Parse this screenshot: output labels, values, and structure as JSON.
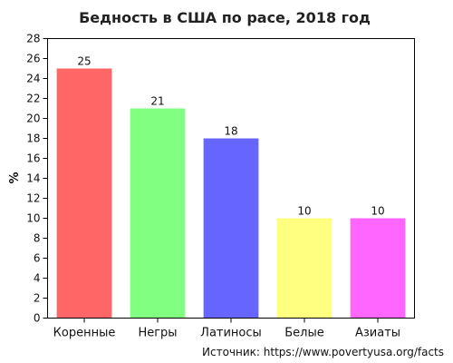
{
  "chart_data": {
    "type": "bar",
    "title": "Бедность в США по расе, 2018 год",
    "xlabel": "",
    "ylabel": "%",
    "ylim": [
      0,
      28
    ],
    "yticks": [
      0,
      2,
      4,
      6,
      8,
      10,
      12,
      14,
      16,
      18,
      20,
      22,
      24,
      26,
      28
    ],
    "categories": [
      "Коренные",
      "Негры",
      "Латиносы",
      "Белые",
      "Азиаты"
    ],
    "values": [
      25,
      21,
      18,
      10,
      10
    ],
    "colors": [
      "#ff6666",
      "#80ff80",
      "#6666ff",
      "#ffff80",
      "#ff66ff"
    ],
    "grid": false,
    "legend": "none",
    "source": "Источник: https://www.povertyusa.org/facts"
  }
}
